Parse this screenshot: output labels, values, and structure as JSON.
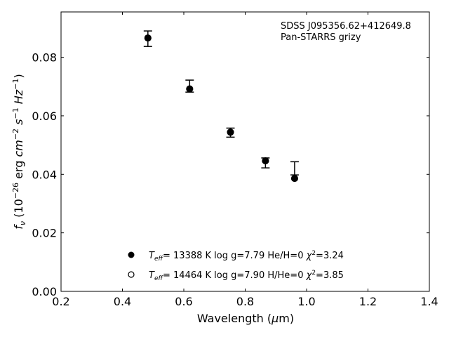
{
  "chart_data": {
    "type": "scatter",
    "title": "",
    "annotation": [
      "SDSS J095356.62+412649.8",
      "Pan-STARRS grizy"
    ],
    "xlabel": "Wavelength (μm)",
    "ylabel": "f_ν (10^-26 erg cm^-2 s^-1 Hz^-1)",
    "xlim": [
      0.2,
      1.4
    ],
    "ylim": [
      0.0,
      0.0955
    ],
    "xticks": [
      "0.2",
      "0.4",
      "0.6",
      "0.8",
      "1.0",
      "1.2",
      "1.4"
    ],
    "yticks": [
      "0.00",
      "0.02",
      "0.04",
      "0.06",
      "0.08"
    ],
    "grid": false,
    "legend_placement": "bottom-center",
    "observed": {
      "x": [
        0.483,
        0.619,
        0.752,
        0.866,
        0.961
      ],
      "y": [
        0.0864,
        0.0702,
        0.0542,
        0.0439,
        0.0421
      ],
      "yerr_low": [
        0.0837,
        0.0681,
        0.0527,
        0.0422,
        0.0398
      ],
      "yerr_high": [
        0.089,
        0.0722,
        0.0558,
        0.0456,
        0.0443
      ]
    },
    "series": [
      {
        "name": "T_eff= 13388 K  log g=7.79  He/H=0  χ²=3.24",
        "marker": "filled-circle",
        "label_parts": {
          "teff": "13388",
          "logg": "7.79",
          "comp": "He/H=0",
          "chi2": "3.24"
        },
        "x": [
          0.483,
          0.619,
          0.752,
          0.866,
          0.961
        ],
        "y": [
          0.0866,
          0.0692,
          0.0544,
          0.0446,
          0.0386
        ]
      },
      {
        "name": "T_eff= 14464 K  log g=7.90  H/He=0  χ²=3.85",
        "marker": "open-circle",
        "label_parts": {
          "teff": "14464",
          "logg": "7.90",
          "comp": "H/He=0",
          "chi2": "3.85"
        },
        "x": [
          0.483,
          0.619,
          0.752,
          0.866,
          0.961
        ],
        "y": [
          0.0866,
          0.0692,
          0.0544,
          0.0446,
          0.0386
        ]
      }
    ],
    "colors": {
      "marker": "#000000",
      "axes": "#000000"
    }
  }
}
